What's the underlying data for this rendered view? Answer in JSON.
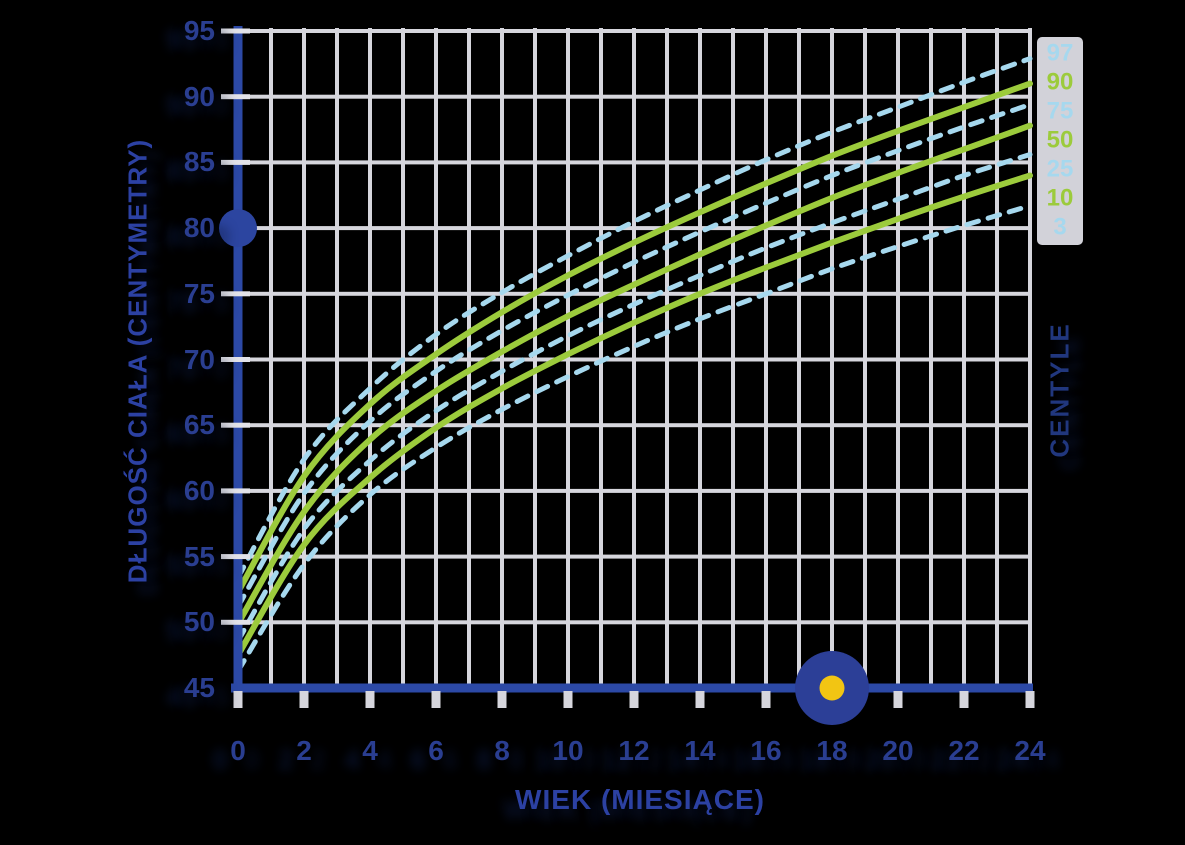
{
  "ui": {
    "background_color": "#000000",
    "grid_color": "#d6d6dd",
    "tick_color": "#e2e2e8",
    "axis_color": "#2c49a6",
    "tick_label_color": "#2a3e91",
    "title_color": "#2c41a3",
    "right_title_color": "#21377e",
    "label_strip_color": "#d2d2d9"
  },
  "chart_data": {
    "type": "line",
    "title": "",
    "xlabel": "WIEK (MIESIĄCE)",
    "ylabel": "DŁUGOŚĆ CIAŁA (CENTYMETRY)",
    "legend_title": "CENTYLE",
    "legend_position": "right",
    "xlim": [
      0,
      24
    ],
    "ylim": [
      45,
      95
    ],
    "x_ticks": [
      0,
      2,
      4,
      6,
      8,
      10,
      12,
      14,
      16,
      18,
      20,
      22,
      24
    ],
    "y_ticks": [
      45,
      50,
      55,
      60,
      65,
      70,
      75,
      80,
      85,
      90,
      95
    ],
    "grid": {
      "on": true,
      "vertical_every_months": 1,
      "horizontal_every_cm": 5
    },
    "x": [
      0,
      2,
      4,
      6,
      8,
      10,
      12,
      14,
      16,
      18,
      20,
      22,
      24
    ],
    "series": [
      {
        "name": "97",
        "style": "dashed",
        "color": "#a6d8ee",
        "values": [
          53.4,
          62.4,
          67.8,
          71.9,
          75.1,
          77.9,
          80.5,
          82.9,
          85.2,
          87.3,
          89.2,
          91.1,
          92.9
        ]
      },
      {
        "name": "90",
        "style": "solid",
        "color": "#9ccb3c",
        "values": [
          52.3,
          61.1,
          66.6,
          70.4,
          73.6,
          76.4,
          78.9,
          81.2,
          83.4,
          85.5,
          87.4,
          89.2,
          91.0
        ]
      },
      {
        "name": "75",
        "style": "dashed",
        "color": "#a6d8ee",
        "values": [
          51.2,
          59.8,
          65.3,
          69.1,
          72.2,
          74.9,
          77.4,
          79.7,
          81.9,
          84.0,
          85.9,
          87.7,
          89.4
        ]
      },
      {
        "name": "50",
        "style": "solid",
        "color": "#9ccb3c",
        "values": [
          49.9,
          58.4,
          63.9,
          67.6,
          70.6,
          73.3,
          75.7,
          78.0,
          80.2,
          82.3,
          84.2,
          86.0,
          87.8
        ]
      },
      {
        "name": "25",
        "style": "dashed",
        "color": "#a6d8ee",
        "values": [
          48.6,
          57.1,
          62.3,
          66.1,
          69.1,
          71.8,
          74.2,
          76.4,
          78.5,
          80.4,
          82.2,
          84.0,
          85.6
        ]
      },
      {
        "name": "10",
        "style": "solid",
        "color": "#9ccb3c",
        "values": [
          47.5,
          55.9,
          61.0,
          64.8,
          67.8,
          70.4,
          72.8,
          75.0,
          77.0,
          78.9,
          80.7,
          82.4,
          84.0
        ]
      },
      {
        "name": "3",
        "style": "dashed",
        "color": "#a6d8ee",
        "values": [
          46.3,
          54.4,
          59.7,
          63.3,
          66.2,
          68.7,
          71.0,
          73.1,
          75.0,
          76.9,
          78.6,
          80.2,
          81.7
        ]
      }
    ],
    "markers": [
      {
        "name": "length-marker-handle",
        "axis": "y",
        "value_cm": 80,
        "color": "#2c45a0"
      },
      {
        "name": "age-marker-handle",
        "axis": "x",
        "value_months": 18,
        "color": "#2c3f97",
        "center_dot_color": "#f2c513"
      }
    ]
  }
}
